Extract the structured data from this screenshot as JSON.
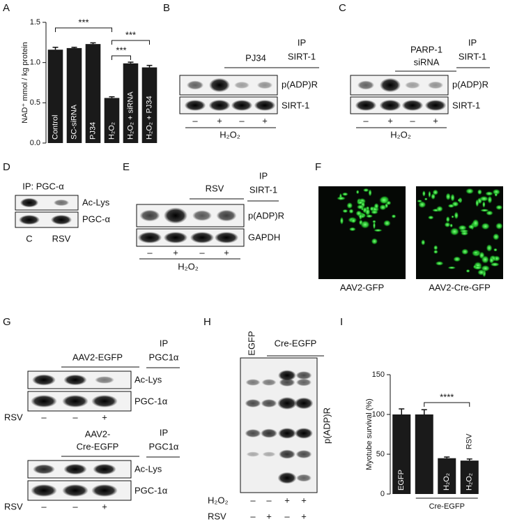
{
  "panel_labels": [
    "A",
    "B",
    "C",
    "D",
    "E",
    "F",
    "G",
    "H",
    "I"
  ],
  "chart_data": [
    {
      "type": "bar",
      "ylabel": "NAD⁺ mmol / kg protein",
      "categories": [
        "Control",
        "SC-siRNA",
        "PJ34",
        "H₂O₂",
        "H₂O₂ + siRNA",
        "H₂O₂ + PJ34"
      ],
      "values": [
        1.16,
        1.18,
        1.23,
        0.56,
        0.99,
        0.94
      ],
      "errors": [
        0.03,
        0.01,
        0.015,
        0.015,
        0.015,
        0.025
      ],
      "color": "#1a1a1a",
      "ylim": [
        0,
        1.5
      ],
      "yticks": [
        {
          "value": 0,
          "label": "0.0"
        },
        {
          "value": 0.5,
          "label": "0.5"
        },
        {
          "value": 1,
          "label": "1.0"
        },
        {
          "value": 1.5,
          "label": "1.5"
        }
      ],
      "annotations": [
        "***",
        "***",
        "***"
      ]
    },
    {
      "type": "bar",
      "ylabel": "Myotube survival (%)",
      "categories": [
        "EGFP",
        null,
        "H₂O₂",
        "H₂O₂"
      ],
      "values": [
        100,
        100,
        45,
        42
      ],
      "errors": [
        7,
        6,
        1.5,
        2
      ],
      "color": "#1a1a1a",
      "ylim": [
        0,
        150
      ],
      "yticks": [
        0,
        50,
        100,
        150
      ],
      "annotations": [
        "****"
      ],
      "inset_label": "RSV",
      "group_label": "Cre-EGFP"
    }
  ],
  "panel_b": {
    "header": "PJ34",
    "ip": "IP",
    "ip_target": "SIRT-1",
    "rows": [
      "p(ADP)R",
      "SIRT-1"
    ],
    "lanes": [
      "–",
      "+",
      "–",
      "+"
    ],
    "treatment": "H₂O₂"
  },
  "panel_c": {
    "header": [
      "PARP-1",
      "siRNA"
    ],
    "ip": "IP",
    "ip_target": "SIRT-1",
    "rows": [
      "p(ADP)R",
      "SIRT-1"
    ],
    "lanes": [
      "–",
      "+",
      "–",
      "+"
    ],
    "treatment": "H₂O₂"
  },
  "panel_d": {
    "ip": "IP: PGC-α",
    "rows": [
      "Ac-Lys",
      "PGC-α"
    ],
    "lanes": [
      "C",
      "RSV"
    ]
  },
  "panel_e": {
    "header": "RSV",
    "ip": "IP",
    "ip_target": "SIRT-1",
    "rows": [
      "p(ADP)R",
      "GAPDH"
    ],
    "lanes": [
      "–",
      "+",
      "–",
      "+"
    ],
    "treatment": "H₂O₂"
  },
  "panel_f": {
    "captions": [
      "AAV2-GFP",
      "AAV2-Cre-GFP"
    ]
  },
  "panel_g": {
    "blots": [
      {
        "header": [
          "AAV2-EGFP"
        ],
        "ip": "IP",
        "ip_target": "PGC1α",
        "rows": [
          "Ac-Lys",
          "PGC-1α"
        ],
        "treatment": "RSV",
        "lanes": [
          "–",
          "–",
          "+"
        ]
      },
      {
        "header": [
          "AAV2-",
          "Cre-EGFP"
        ],
        "ip": "IP",
        "ip_target": "PGC1α",
        "rows": [
          "Ac-Lys",
          "PGC-1α"
        ],
        "treatment": "RSV",
        "lanes": [
          "–",
          "–",
          "+"
        ]
      }
    ]
  },
  "panel_h": {
    "groups": [
      "EGFP",
      "Cre-EGFP"
    ],
    "row": "p(ADP)R",
    "treatments": [
      {
        "name": "H₂O₂",
        "lanes": [
          "–",
          "–",
          "+",
          "+"
        ]
      },
      {
        "name": "RSV",
        "lanes": [
          "–",
          "+",
          "–",
          "+"
        ]
      }
    ]
  }
}
